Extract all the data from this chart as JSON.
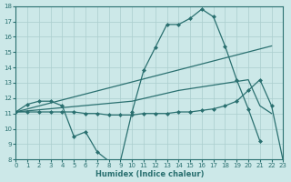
{
  "xlabel": "Humidex (Indice chaleur)",
  "bg_color": "#cce8e8",
  "grid_color": "#aacece",
  "line_color": "#2a7070",
  "xlim": [
    0,
    23
  ],
  "ylim": [
    8,
    18
  ],
  "xticks": [
    0,
    1,
    2,
    3,
    4,
    5,
    6,
    7,
    8,
    9,
    10,
    11,
    12,
    13,
    14,
    15,
    16,
    17,
    18,
    19,
    20,
    21,
    22,
    23
  ],
  "yticks": [
    8,
    9,
    10,
    11,
    12,
    13,
    14,
    15,
    16,
    17,
    18
  ],
  "lines": [
    {
      "x": [
        0,
        1,
        2,
        3,
        4,
        5,
        6,
        7,
        8,
        9,
        10,
        11,
        12,
        13,
        14,
        15,
        16,
        17,
        18,
        19,
        20,
        21
      ],
      "y": [
        11.1,
        11.6,
        11.8,
        11.8,
        11.5,
        9.5,
        9.8,
        8.5,
        7.9,
        7.9,
        11.1,
        13.8,
        15.3,
        16.8,
        16.8,
        17.2,
        17.8,
        17.3,
        15.4,
        13.2,
        11.3,
        9.2
      ],
      "has_markers": true
    },
    {
      "x": [
        0,
        22
      ],
      "y": [
        11.1,
        15.4
      ],
      "has_markers": false
    },
    {
      "x": [
        0,
        10,
        14,
        20,
        21,
        22
      ],
      "y": [
        11.1,
        11.8,
        12.5,
        13.2,
        11.5,
        11.0
      ],
      "has_markers": false
    },
    {
      "x": [
        0,
        1,
        2,
        3,
        4,
        5,
        6,
        7,
        8,
        9,
        10,
        11,
        12,
        13,
        14,
        15,
        16,
        17,
        18,
        19,
        20,
        21,
        22,
        23
      ],
      "y": [
        11.1,
        11.1,
        11.1,
        11.1,
        11.1,
        11.1,
        11.0,
        11.0,
        10.9,
        10.9,
        10.9,
        11.0,
        11.0,
        11.0,
        11.1,
        11.1,
        11.2,
        11.3,
        11.5,
        11.8,
        12.5,
        13.2,
        11.5,
        7.9
      ],
      "has_markers": true
    }
  ]
}
